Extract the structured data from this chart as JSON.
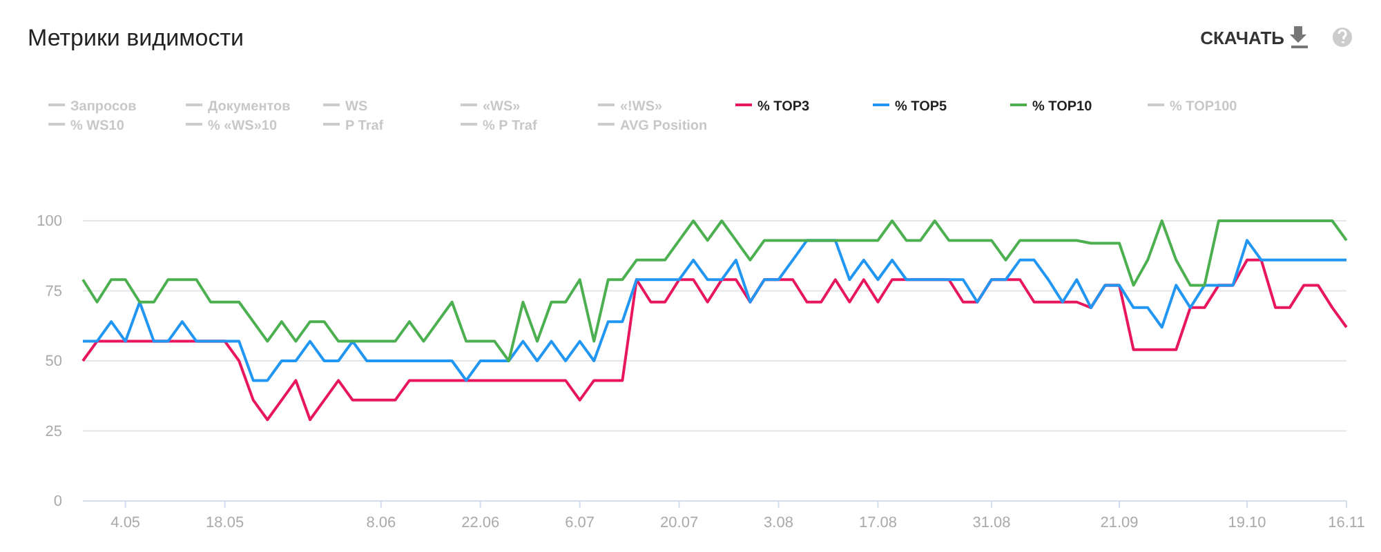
{
  "chart_data": {
    "type": "line",
    "title": "Метрики видимости",
    "annotations": [
      "СКАЧАТЬ"
    ],
    "categories": [
      null,
      null,
      null,
      "4.05",
      null,
      null,
      null,
      null,
      null,
      null,
      "18.05",
      null,
      null,
      null,
      null,
      null,
      null,
      null,
      null,
      null,
      null,
      "8.06",
      null,
      null,
      null,
      null,
      null,
      null,
      "22.06",
      null,
      null,
      null,
      null,
      null,
      null,
      "6.07",
      null,
      null,
      null,
      null,
      null,
      null,
      "20.07",
      null,
      null,
      null,
      null,
      null,
      null,
      "3.08",
      null,
      null,
      null,
      null,
      null,
      null,
      "17.08",
      null,
      null,
      null,
      null,
      null,
      null,
      null,
      "31.08",
      null,
      null,
      null,
      null,
      null,
      null,
      null,
      null,
      "21.09",
      null,
      null,
      null,
      null,
      null,
      null,
      null,
      null,
      "19.10",
      null,
      null,
      null,
      null,
      null,
      null,
      "16.11"
    ],
    "ylim": [
      0,
      100
    ],
    "yticks": [
      0,
      25,
      50,
      75,
      100
    ],
    "grid": "y",
    "legend": "top",
    "marker": "none",
    "line_style": "solid",
    "series": [
      {
        "name": "Запросов",
        "color": "#cccccc",
        "values": [
          null,
          null,
          null,
          null,
          null,
          null,
          null,
          null,
          null,
          null,
          null,
          null,
          null,
          null,
          null,
          null,
          null,
          null,
          null,
          null,
          null,
          null,
          null,
          null,
          null,
          null,
          null,
          null,
          null,
          null,
          null,
          null,
          null,
          null,
          null,
          null,
          null,
          null,
          null,
          null,
          null,
          null,
          null,
          null,
          null,
          null,
          null,
          null,
          null,
          null,
          null,
          null,
          null,
          null,
          null,
          null,
          null,
          null,
          null,
          null,
          null,
          null,
          null,
          null,
          null,
          null,
          null,
          null,
          null,
          null,
          null,
          null,
          null,
          null,
          null,
          null,
          null,
          null,
          null,
          null,
          null,
          null,
          null,
          null,
          null,
          null,
          null,
          null,
          null,
          null
        ]
      },
      {
        "name": "Документов",
        "color": "#cccccc",
        "values": [
          null,
          null,
          null,
          null,
          null,
          null,
          null,
          null,
          null,
          null,
          null,
          null,
          null,
          null,
          null,
          null,
          null,
          null,
          null,
          null,
          null,
          null,
          null,
          null,
          null,
          null,
          null,
          null,
          null,
          null,
          null,
          null,
          null,
          null,
          null,
          null,
          null,
          null,
          null,
          null,
          null,
          null,
          null,
          null,
          null,
          null,
          null,
          null,
          null,
          null,
          null,
          null,
          null,
          null,
          null,
          null,
          null,
          null,
          null,
          null,
          null,
          null,
          null,
          null,
          null,
          null,
          null,
          null,
          null,
          null,
          null,
          null,
          null,
          null,
          null,
          null,
          null,
          null,
          null,
          null,
          null,
          null,
          null,
          null,
          null,
          null,
          null,
          null,
          null,
          null
        ]
      },
      {
        "name": "WS",
        "color": "#cccccc",
        "values": [
          null,
          null,
          null,
          null,
          null,
          null,
          null,
          null,
          null,
          null,
          null,
          null,
          null,
          null,
          null,
          null,
          null,
          null,
          null,
          null,
          null,
          null,
          null,
          null,
          null,
          null,
          null,
          null,
          null,
          null,
          null,
          null,
          null,
          null,
          null,
          null,
          null,
          null,
          null,
          null,
          null,
          null,
          null,
          null,
          null,
          null,
          null,
          null,
          null,
          null,
          null,
          null,
          null,
          null,
          null,
          null,
          null,
          null,
          null,
          null,
          null,
          null,
          null,
          null,
          null,
          null,
          null,
          null,
          null,
          null,
          null,
          null,
          null,
          null,
          null,
          null,
          null,
          null,
          null,
          null,
          null,
          null,
          null,
          null,
          null,
          null,
          null,
          null,
          null,
          null
        ]
      },
      {
        "name": "«WS»",
        "color": "#cccccc",
        "values": [
          null,
          null,
          null,
          null,
          null,
          null,
          null,
          null,
          null,
          null,
          null,
          null,
          null,
          null,
          null,
          null,
          null,
          null,
          null,
          null,
          null,
          null,
          null,
          null,
          null,
          null,
          null,
          null,
          null,
          null,
          null,
          null,
          null,
          null,
          null,
          null,
          null,
          null,
          null,
          null,
          null,
          null,
          null,
          null,
          null,
          null,
          null,
          null,
          null,
          null,
          null,
          null,
          null,
          null,
          null,
          null,
          null,
          null,
          null,
          null,
          null,
          null,
          null,
          null,
          null,
          null,
          null,
          null,
          null,
          null,
          null,
          null,
          null,
          null,
          null,
          null,
          null,
          null,
          null,
          null,
          null,
          null,
          null,
          null,
          null,
          null,
          null,
          null,
          null,
          null
        ]
      },
      {
        "name": "«!WS»",
        "color": "#cccccc",
        "values": [
          null,
          null,
          null,
          null,
          null,
          null,
          null,
          null,
          null,
          null,
          null,
          null,
          null,
          null,
          null,
          null,
          null,
          null,
          null,
          null,
          null,
          null,
          null,
          null,
          null,
          null,
          null,
          null,
          null,
          null,
          null,
          null,
          null,
          null,
          null,
          null,
          null,
          null,
          null,
          null,
          null,
          null,
          null,
          null,
          null,
          null,
          null,
          null,
          null,
          null,
          null,
          null,
          null,
          null,
          null,
          null,
          null,
          null,
          null,
          null,
          null,
          null,
          null,
          null,
          null,
          null,
          null,
          null,
          null,
          null,
          null,
          null,
          null,
          null,
          null,
          null,
          null,
          null,
          null,
          null,
          null,
          null,
          null,
          null,
          null,
          null,
          null,
          null,
          null,
          null
        ]
      },
      {
        "name": "% TOP3",
        "color": "#e8175d",
        "values": [
          50,
          57,
          57,
          57,
          57,
          57,
          57,
          57,
          57,
          57,
          57,
          50,
          36,
          29,
          36,
          43,
          29,
          36,
          43,
          36,
          36,
          36,
          36,
          43,
          43,
          43,
          43,
          43,
          43,
          43,
          43,
          43,
          43,
          43,
          43,
          36,
          43,
          43,
          43,
          79,
          71,
          71,
          79,
          79,
          71,
          79,
          79,
          71,
          79,
          79,
          79,
          71,
          71,
          79,
          71,
          79,
          71,
          79,
          79,
          79,
          79,
          79,
          71,
          71,
          79,
          79,
          79,
          71,
          71,
          71,
          71,
          69,
          77,
          77,
          54,
          54,
          54,
          54,
          69,
          69,
          77,
          77,
          86,
          86,
          69,
          69,
          77,
          77,
          69,
          62
        ]
      },
      {
        "name": "% TOP5",
        "color": "#2196f3",
        "values": [
          57,
          57,
          64,
          57,
          71,
          57,
          57,
          64,
          57,
          57,
          57,
          57,
          43,
          43,
          50,
          50,
          57,
          50,
          50,
          57,
          50,
          50,
          50,
          50,
          50,
          50,
          50,
          43,
          50,
          50,
          50,
          57,
          50,
          57,
          50,
          57,
          50,
          64,
          64,
          79,
          79,
          79,
          79,
          86,
          79,
          79,
          86,
          71,
          79,
          79,
          86,
          93,
          93,
          93,
          79,
          86,
          79,
          86,
          79,
          79,
          79,
          79,
          79,
          71,
          79,
          79,
          86,
          86,
          79,
          71,
          79,
          69,
          77,
          77,
          69,
          69,
          62,
          77,
          69,
          77,
          77,
          77,
          93,
          86,
          86,
          86,
          86,
          86,
          86,
          86
        ]
      },
      {
        "name": "% TOP10",
        "color": "#4caf50",
        "values": [
          79,
          71,
          79,
          79,
          71,
          71,
          79,
          79,
          79,
          71,
          71,
          71,
          64,
          57,
          64,
          57,
          64,
          64,
          57,
          57,
          57,
          57,
          57,
          64,
          57,
          64,
          71,
          57,
          57,
          57,
          50,
          71,
          57,
          71,
          71,
          79,
          57,
          79,
          79,
          86,
          86,
          86,
          93,
          100,
          93,
          100,
          93,
          86,
          93,
          93,
          93,
          93,
          93,
          93,
          93,
          93,
          93,
          100,
          93,
          93,
          100,
          93,
          93,
          93,
          93,
          86,
          93,
          93,
          93,
          93,
          93,
          92,
          92,
          92,
          77,
          86,
          100,
          86,
          77,
          77,
          100,
          100,
          100,
          100,
          100,
          100,
          100,
          100,
          100,
          93
        ]
      },
      {
        "name": "% TOP100",
        "color": "#cccccc",
        "values": [
          null,
          null,
          null,
          null,
          null,
          null,
          null,
          null,
          null,
          null,
          null,
          null,
          null,
          null,
          null,
          null,
          null,
          null,
          null,
          null,
          null,
          null,
          null,
          null,
          null,
          null,
          null,
          null,
          null,
          null,
          null,
          null,
          null,
          null,
          null,
          null,
          null,
          null,
          null,
          null,
          null,
          null,
          null,
          null,
          null,
          null,
          null,
          null,
          null,
          null,
          null,
          null,
          null,
          null,
          null,
          null,
          null,
          null,
          null,
          null,
          null,
          null,
          null,
          null,
          null,
          null,
          null,
          null,
          null,
          null,
          null,
          null,
          null,
          null,
          null,
          null,
          null,
          null,
          null,
          null,
          null,
          null,
          null,
          null,
          null,
          null,
          null,
          null,
          null,
          null
        ]
      },
      {
        "name": "% WS10",
        "color": "#cccccc",
        "values": [
          null,
          null,
          null,
          null,
          null,
          null,
          null,
          null,
          null,
          null,
          null,
          null,
          null,
          null,
          null,
          null,
          null,
          null,
          null,
          null,
          null,
          null,
          null,
          null,
          null,
          null,
          null,
          null,
          null,
          null,
          null,
          null,
          null,
          null,
          null,
          null,
          null,
          null,
          null,
          null,
          null,
          null,
          null,
          null,
          null,
          null,
          null,
          null,
          null,
          null,
          null,
          null,
          null,
          null,
          null,
          null,
          null,
          null,
          null,
          null,
          null,
          null,
          null,
          null,
          null,
          null,
          null,
          null,
          null,
          null,
          null,
          null,
          null,
          null,
          null,
          null,
          null,
          null,
          null,
          null,
          null,
          null,
          null,
          null,
          null,
          null,
          null,
          null,
          null,
          null
        ]
      },
      {
        "name": "% «WS»10",
        "color": "#cccccc",
        "values": [
          null,
          null,
          null,
          null,
          null,
          null,
          null,
          null,
          null,
          null,
          null,
          null,
          null,
          null,
          null,
          null,
          null,
          null,
          null,
          null,
          null,
          null,
          null,
          null,
          null,
          null,
          null,
          null,
          null,
          null,
          null,
          null,
          null,
          null,
          null,
          null,
          null,
          null,
          null,
          null,
          null,
          null,
          null,
          null,
          null,
          null,
          null,
          null,
          null,
          null,
          null,
          null,
          null,
          null,
          null,
          null,
          null,
          null,
          null,
          null,
          null,
          null,
          null,
          null,
          null,
          null,
          null,
          null,
          null,
          null,
          null,
          null,
          null,
          null,
          null,
          null,
          null,
          null,
          null,
          null,
          null,
          null,
          null,
          null,
          null,
          null,
          null,
          null,
          null,
          null
        ]
      },
      {
        "name": "P Traf",
        "color": "#cccccc",
        "values": [
          null,
          null,
          null,
          null,
          null,
          null,
          null,
          null,
          null,
          null,
          null,
          null,
          null,
          null,
          null,
          null,
          null,
          null,
          null,
          null,
          null,
          null,
          null,
          null,
          null,
          null,
          null,
          null,
          null,
          null,
          null,
          null,
          null,
          null,
          null,
          null,
          null,
          null,
          null,
          null,
          null,
          null,
          null,
          null,
          null,
          null,
          null,
          null,
          null,
          null,
          null,
          null,
          null,
          null,
          null,
          null,
          null,
          null,
          null,
          null,
          null,
          null,
          null,
          null,
          null,
          null,
          null,
          null,
          null,
          null,
          null,
          null,
          null,
          null,
          null,
          null,
          null,
          null,
          null,
          null,
          null,
          null,
          null,
          null,
          null,
          null,
          null,
          null,
          null,
          null
        ]
      },
      {
        "name": "% P Traf",
        "color": "#cccccc",
        "values": [
          null,
          null,
          null,
          null,
          null,
          null,
          null,
          null,
          null,
          null,
          null,
          null,
          null,
          null,
          null,
          null,
          null,
          null,
          null,
          null,
          null,
          null,
          null,
          null,
          null,
          null,
          null,
          null,
          null,
          null,
          null,
          null,
          null,
          null,
          null,
          null,
          null,
          null,
          null,
          null,
          null,
          null,
          null,
          null,
          null,
          null,
          null,
          null,
          null,
          null,
          null,
          null,
          null,
          null,
          null,
          null,
          null,
          null,
          null,
          null,
          null,
          null,
          null,
          null,
          null,
          null,
          null,
          null,
          null,
          null,
          null,
          null,
          null,
          null,
          null,
          null,
          null,
          null,
          null,
          null,
          null,
          null,
          null,
          null,
          null,
          null,
          null,
          null,
          null,
          null
        ]
      },
      {
        "name": "AVG Position",
        "color": "#cccccc",
        "values": [
          null,
          null,
          null,
          null,
          null,
          null,
          null,
          null,
          null,
          null,
          null,
          null,
          null,
          null,
          null,
          null,
          null,
          null,
          null,
          null,
          null,
          null,
          null,
          null,
          null,
          null,
          null,
          null,
          null,
          null,
          null,
          null,
          null,
          null,
          null,
          null,
          null,
          null,
          null,
          null,
          null,
          null,
          null,
          null,
          null,
          null,
          null,
          null,
          null,
          null,
          null,
          null,
          null,
          null,
          null,
          null,
          null,
          null,
          null,
          null,
          null,
          null,
          null,
          null,
          null,
          null,
          null,
          null,
          null,
          null,
          null,
          null,
          null,
          null,
          null,
          null,
          null,
          null,
          null,
          null,
          null,
          null,
          null,
          null,
          null,
          null,
          null,
          null,
          null,
          null
        ]
      }
    ]
  }
}
